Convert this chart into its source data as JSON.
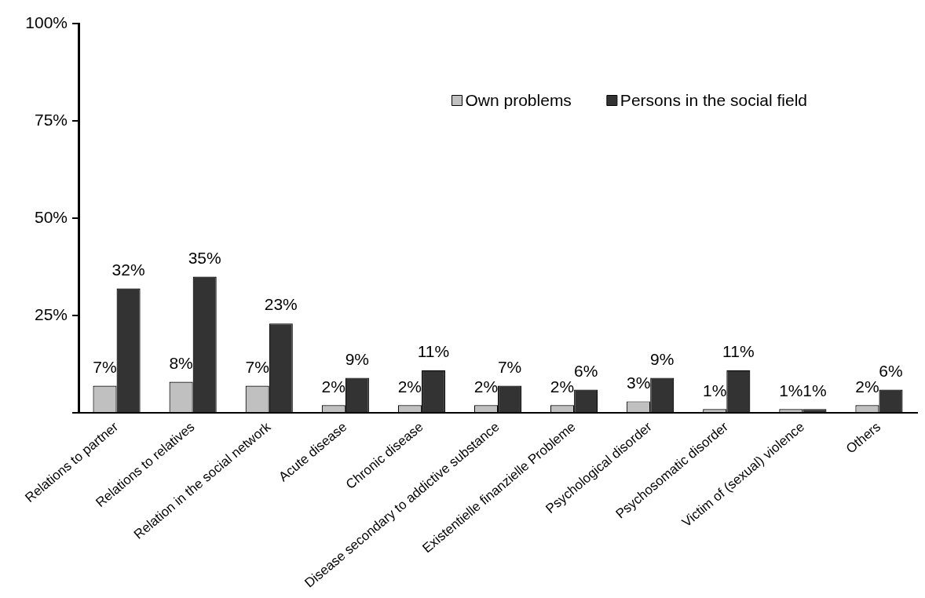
{
  "chart_data": {
    "type": "bar",
    "categories": [
      "Relations to partner",
      "Relations to relatives",
      "Relation in the social network",
      "Acute disease",
      "Chronic disease",
      "Disease secondary to addictive substance",
      "Existentielle finanzielle Probleme",
      "Psychological disorder",
      "Psychosomatic disorder",
      "Victim of (sexual) violence",
      "Others"
    ],
    "series": [
      {
        "name": "Own problems",
        "color": "#c0c0c0",
        "values": [
          7,
          8,
          7,
          2,
          2,
          2,
          2,
          3,
          1,
          1,
          2
        ],
        "value_labels": [
          "7%",
          "8%",
          "7%",
          "2%",
          "2%",
          "2%",
          "2%",
          "3%",
          "1%",
          "1%",
          "2%"
        ]
      },
      {
        "name": "Persons in the social field",
        "color": "#333333",
        "values": [
          32,
          35,
          23,
          9,
          11,
          7,
          6,
          9,
          11,
          1,
          6
        ],
        "value_labels": [
          "32%",
          "35%",
          "23%",
          "9%",
          "11%",
          "7%",
          "6%",
          "9%",
          "11%",
          "1%",
          "6%"
        ]
      }
    ],
    "ylim": [
      0,
      100
    ],
    "yticks": [
      {
        "value": 0,
        "label": null
      },
      {
        "value": 25,
        "label": "25%"
      },
      {
        "value": 50,
        "label": "50%"
      },
      {
        "value": 75,
        "label": "75%"
      },
      {
        "value": 100,
        "label": "100%"
      }
    ],
    "grid": false,
    "legend": "top right"
  }
}
